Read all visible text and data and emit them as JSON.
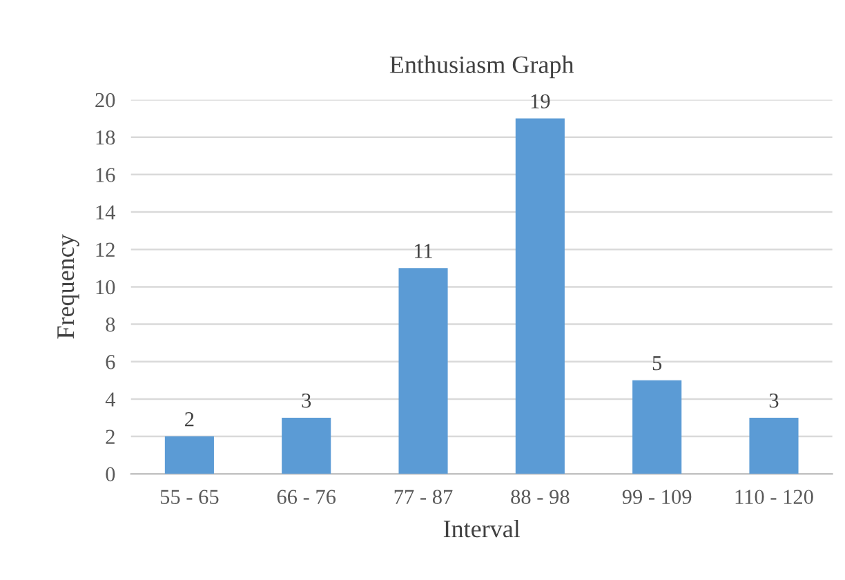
{
  "chart_data": {
    "type": "bar",
    "title": "Enthusiasm Graph",
    "xlabel": "Interval",
    "ylabel": "Frequency",
    "categories": [
      "55 - 65",
      "66 - 76",
      "77 - 87",
      "88 - 98",
      "99 - 109",
      "110 - 120"
    ],
    "values": [
      2,
      3,
      11,
      19,
      5,
      3
    ],
    "color": "#5b9bd5",
    "ylim": [
      0,
      20
    ],
    "yticks": [
      0,
      2,
      4,
      6,
      8,
      10,
      12,
      14,
      16,
      18,
      20
    ],
    "grid": "y",
    "data_labels": true,
    "legend": false
  }
}
